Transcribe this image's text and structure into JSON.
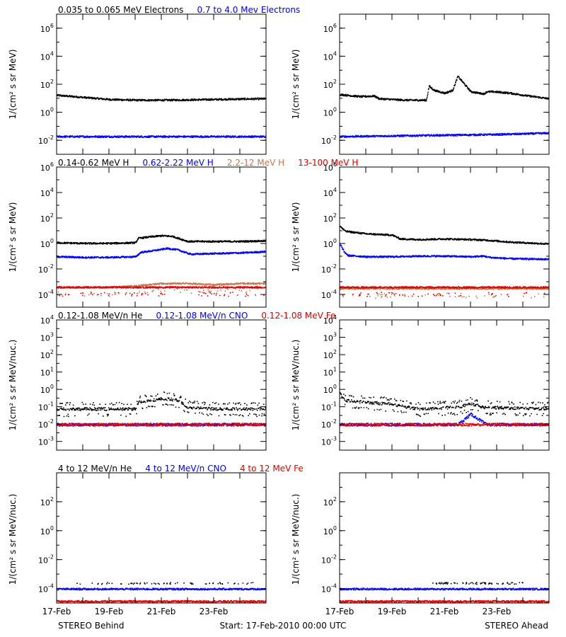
{
  "figure": {
    "footer_left": "STEREO Behind",
    "footer_center": "Start: 17-Feb-2010 00:00 UTC",
    "footer_right": "STEREO Ahead",
    "x_tick_labels": [
      "17-Feb",
      "19-Feb",
      "21-Feb",
      "23-Feb"
    ]
  },
  "rows": [
    {
      "headers": [
        {
          "text": "0.035 to 0.065 MeV Electrons",
          "color": "#000000"
        },
        {
          "text": "0.7 to 4.0 Mev Electrons",
          "color": "#0000ff"
        }
      ],
      "ylabel": "1/(cm² s sr MeV)",
      "y_ticks": [
        {
          "base": "10",
          "exp": "6"
        },
        {
          "base": "10",
          "exp": "4"
        },
        {
          "base": "10",
          "exp": "2"
        },
        {
          "base": "10",
          "exp": "0"
        },
        {
          "base": "10",
          "exp": "-2"
        }
      ]
    },
    {
      "headers": [
        {
          "text": "0.14-0.62 MeV H",
          "color": "#000000"
        },
        {
          "text": "0.62-2.22 MeV H",
          "color": "#0000ff"
        },
        {
          "text": "2.2-12 MeV H",
          "color": "#c07850"
        },
        {
          "text": "13-100 MeV H",
          "color": "#e00000"
        }
      ],
      "ylabel": "1/(cm² s sr MeV)",
      "y_ticks": [
        {
          "base": "10",
          "exp": "6"
        },
        {
          "base": "10",
          "exp": "4"
        },
        {
          "base": "10",
          "exp": "2"
        },
        {
          "base": "10",
          "exp": "0"
        },
        {
          "base": "10",
          "exp": "-2"
        },
        {
          "base": "10",
          "exp": "-4"
        }
      ]
    },
    {
      "headers": [
        {
          "text": "0.12-1.08 MeV/n He",
          "color": "#000000"
        },
        {
          "text": "0.12-1.08 MeV/n CNO",
          "color": "#0000ff"
        },
        {
          "text": "0.12-1.08 MeV Fe",
          "color": "#e00000"
        }
      ],
      "ylabel": "1/(cm² s sr MeV/nuc.)",
      "y_ticks": [
        {
          "base": "10",
          "exp": "4"
        },
        {
          "base": "10",
          "exp": "3"
        },
        {
          "base": "10",
          "exp": "2"
        },
        {
          "base": "10",
          "exp": "1"
        },
        {
          "base": "10",
          "exp": "0"
        },
        {
          "base": "10",
          "exp": "-1"
        },
        {
          "base": "10",
          "exp": "-2"
        },
        {
          "base": "10",
          "exp": "-3"
        }
      ]
    },
    {
      "headers": [
        {
          "text": "4 to 12 MeV/n He",
          "color": "#000000"
        },
        {
          "text": "4 to 12 MeV/n CNO",
          "color": "#0000ff"
        },
        {
          "text": "4 to 12 MeV Fe",
          "color": "#e00000"
        }
      ],
      "ylabel": "1/(cm² s sr MeV/nuc.)",
      "y_ticks": [
        {
          "base": "10",
          "exp": "2"
        },
        {
          "base": "10",
          "exp": "0"
        },
        {
          "base": "10",
          "exp": "-2"
        },
        {
          "base": "10",
          "exp": "-4"
        }
      ]
    }
  ],
  "chart_data": [
    {
      "type": "scatter",
      "panel": "row1-behind",
      "x_unit": "days since 17-Feb-2010 00:00 UTC",
      "xlim": [
        0,
        8
      ],
      "yscale": "log",
      "ylim_exp": [
        -3,
        7
      ],
      "series": [
        {
          "name": "0.035 to 0.065 MeV Electrons",
          "color": "#000000",
          "x": [
            0,
            1,
            2,
            3,
            4,
            5,
            6,
            7,
            8
          ],
          "y_exp": [
            1.25,
            1.1,
            0.95,
            0.9,
            0.9,
            0.92,
            0.95,
            0.98,
            1.0
          ]
        },
        {
          "name": "0.7 to 4.0 Mev Electrons",
          "color": "#0000ff",
          "x": [
            0,
            1,
            2,
            3,
            4,
            5,
            6,
            7,
            8
          ],
          "y_exp": [
            -1.7,
            -1.7,
            -1.7,
            -1.7,
            -1.7,
            -1.7,
            -1.7,
            -1.7,
            -1.7
          ]
        }
      ]
    },
    {
      "type": "scatter",
      "panel": "row1-ahead",
      "x_unit": "days since 17-Feb-2010 00:00 UTC",
      "xlim": [
        0,
        8
      ],
      "yscale": "log",
      "ylim_exp": [
        -3,
        7
      ],
      "series": [
        {
          "name": "0.035 to 0.065 MeV Electrons",
          "color": "#000000",
          "x": [
            0,
            0.8,
            1.3,
            1.5,
            2.5,
            3.3,
            3.4,
            3.6,
            4.0,
            4.3,
            4.5,
            5.0,
            5.5,
            5.6,
            5.9,
            6.5,
            7.2,
            8.0
          ],
          "y_exp": [
            1.3,
            1.15,
            1.2,
            1.0,
            0.9,
            0.9,
            1.9,
            1.6,
            1.4,
            1.6,
            2.6,
            1.5,
            1.35,
            1.5,
            1.5,
            1.4,
            1.2,
            1.0
          ]
        },
        {
          "name": "0.7 to 4.0 Mev Electrons",
          "color": "#0000ff",
          "x": [
            0,
            2,
            4,
            6,
            8
          ],
          "y_exp": [
            -1.7,
            -1.65,
            -1.6,
            -1.55,
            -1.45
          ]
        }
      ]
    },
    {
      "type": "scatter",
      "panel": "row2-behind",
      "x_unit": "days since 17-Feb-2010 00:00 UTC",
      "xlim": [
        0,
        8
      ],
      "yscale": "log",
      "ylim_exp": [
        -5,
        6
      ],
      "series": [
        {
          "name": "0.14-0.62 MeV H",
          "color": "#000000",
          "x": [
            0,
            1,
            2,
            3,
            3.1,
            3.5,
            4.0,
            4.4,
            5.0,
            6.0,
            7.0,
            8.0
          ],
          "y_exp": [
            0.1,
            0.05,
            0.05,
            0.1,
            0.45,
            0.55,
            0.65,
            0.6,
            0.2,
            0.2,
            0.2,
            0.25
          ]
        },
        {
          "name": "0.62-2.22 MeV H",
          "color": "#0000ff",
          "x": [
            0,
            1,
            2,
            3,
            3.2,
            3.6,
            4.2,
            4.6,
            5.1,
            6.0,
            7.0,
            8.0
          ],
          "y_exp": [
            -1.0,
            -1.05,
            -1.05,
            -1.0,
            -0.65,
            -0.55,
            -0.35,
            -0.45,
            -0.8,
            -0.75,
            -0.7,
            -0.6
          ]
        },
        {
          "name": "2.2-12 MeV H",
          "color": "#c07850",
          "x": [
            0,
            2,
            3,
            4,
            5,
            6,
            7,
            8
          ],
          "y_exp": [
            -3.4,
            -3.4,
            -3.3,
            -3.1,
            -3.1,
            -3.2,
            -3.1,
            -3.1
          ]
        },
        {
          "name": "13-100 MeV H",
          "color": "#e00000",
          "x": [
            0,
            2,
            4,
            6,
            8
          ],
          "y_exp": [
            -3.4,
            -3.4,
            -3.4,
            -3.4,
            -3.4
          ]
        }
      ]
    },
    {
      "type": "scatter",
      "panel": "row2-ahead",
      "x_unit": "days since 17-Feb-2010 00:00 UTC",
      "xlim": [
        0,
        8
      ],
      "yscale": "log",
      "ylim_exp": [
        -5,
        6
      ],
      "series": [
        {
          "name": "0.14-0.62 MeV H",
          "color": "#000000",
          "x": [
            0,
            0.2,
            1,
            2,
            2.3,
            3,
            4,
            5.0,
            5.6,
            6.5,
            7.5,
            8.0
          ],
          "y_exp": [
            1.4,
            1.0,
            0.8,
            0.7,
            0.4,
            0.35,
            0.4,
            0.35,
            0.3,
            0.15,
            0.05,
            0.0
          ]
        },
        {
          "name": "0.62-2.22 MeV H",
          "color": "#0000ff",
          "x": [
            0,
            0.15,
            0.3,
            1,
            2,
            3,
            4,
            5,
            5.5,
            5.7,
            6.5,
            8.0
          ],
          "y_exp": [
            0.0,
            -0.6,
            -0.9,
            -1.0,
            -1.0,
            -0.95,
            -0.95,
            -1.0,
            -0.95,
            -1.05,
            -1.15,
            -1.2
          ]
        },
        {
          "name": "2.2-12 MeV H",
          "color": "#c07850",
          "x": [
            0,
            4,
            8
          ],
          "y_exp": [
            -3.5,
            -3.5,
            -3.5
          ]
        },
        {
          "name": "13-100 MeV H",
          "color": "#e00000",
          "x": [
            0,
            2,
            4,
            6,
            8
          ],
          "y_exp": [
            -3.4,
            -3.4,
            -3.4,
            -3.4,
            -3.4
          ]
        }
      ]
    },
    {
      "type": "scatter",
      "panel": "row3-behind",
      "x_unit": "days since 17-Feb-2010 00:00 UTC",
      "xlim": [
        0,
        8
      ],
      "yscale": "log",
      "ylim_exp": [
        -3.5,
        4
      ],
      "series": [
        {
          "name": "0.12-1.08 MeV/n He",
          "color": "#000000",
          "x": [
            0,
            3,
            3.1,
            3.6,
            4.1,
            4.6,
            5.0,
            6,
            8
          ],
          "y_exp": [
            -1.1,
            -1.1,
            -0.7,
            -0.6,
            -0.5,
            -0.6,
            -1.0,
            -1.1,
            -1.1
          ]
        },
        {
          "name": "0.12-1.08 MeV/n CNO",
          "color": "#0000ff",
          "x": [
            0,
            8
          ],
          "y_exp": [
            -2.0,
            -2.0
          ]
        },
        {
          "name": "0.12-1.08 MeV Fe",
          "color": "#e00000",
          "x": [
            0,
            8
          ],
          "y_exp": [
            -2.0,
            -2.0
          ]
        }
      ]
    },
    {
      "type": "scatter",
      "panel": "row3-ahead",
      "x_unit": "days since 17-Feb-2010 00:00 UTC",
      "xlim": [
        0,
        8
      ],
      "yscale": "log",
      "ylim_exp": [
        -3.5,
        4
      ],
      "series": [
        {
          "name": "0.12-1.08 MeV/n He",
          "color": "#000000",
          "x": [
            0,
            0.2,
            0.8,
            1.8,
            3,
            4.5,
            5.0,
            5.5,
            8
          ],
          "y_exp": [
            -0.2,
            -0.6,
            -0.7,
            -0.8,
            -1.1,
            -1.0,
            -0.8,
            -1.0,
            -1.1
          ]
        },
        {
          "name": "0.12-1.08 MeV/n CNO",
          "color": "#0000ff",
          "x": [
            0,
            4.5,
            5.0,
            5.6,
            8
          ],
          "y_exp": [
            -2.0,
            -2.0,
            -1.4,
            -2.0,
            -2.0
          ]
        },
        {
          "name": "0.12-1.08 MeV Fe",
          "color": "#e00000",
          "x": [
            0,
            8
          ],
          "y_exp": [
            -2.0,
            -2.0
          ]
        }
      ]
    },
    {
      "type": "scatter",
      "panel": "row4-behind",
      "x_unit": "days since 17-Feb-2010 00:00 UTC",
      "xlim": [
        0,
        8
      ],
      "yscale": "log",
      "ylim_exp": [
        -5,
        4
      ],
      "series": [
        {
          "name": "4 to 12 MeV/n He",
          "color": "#000000",
          "x": [
            0.5,
            1,
            2,
            3,
            4,
            5,
            6,
            7,
            7.5
          ],
          "y_exp": [
            -3.6,
            -3.6,
            -3.6,
            -3.6,
            -3.6,
            -3.6,
            -3.6,
            -3.6,
            -3.6
          ]
        },
        {
          "name": "4 to 12 MeV/n CNO",
          "color": "#0000ff",
          "x": [
            0,
            8
          ],
          "y_exp": [
            -4.0,
            -4.0
          ]
        },
        {
          "name": "4 to 12 MeV Fe",
          "color": "#e00000",
          "x": [
            0,
            8
          ],
          "y_exp": [
            -4.85,
            -4.85
          ]
        }
      ]
    },
    {
      "type": "scatter",
      "panel": "row4-ahead",
      "x_unit": "days since 17-Feb-2010 00:00 UTC",
      "xlim": [
        0,
        8
      ],
      "yscale": "log",
      "ylim_exp": [
        -5,
        4
      ],
      "series": [
        {
          "name": "4 to 12 MeV/n He",
          "color": "#000000",
          "x": [
            3.5,
            4.5,
            5.0,
            5.5,
            6.0,
            7.0
          ],
          "y_exp": [
            -3.6,
            -3.6,
            -3.6,
            -3.6,
            -3.6,
            -3.6
          ]
        },
        {
          "name": "4 to 12 MeV/n CNO",
          "color": "#0000ff",
          "x": [
            0,
            8
          ],
          "y_exp": [
            -4.0,
            -4.0
          ]
        },
        {
          "name": "4 to 12 MeV Fe",
          "color": "#e00000",
          "x": [
            0,
            8
          ],
          "y_exp": [
            -4.85,
            -4.85
          ]
        }
      ]
    }
  ]
}
